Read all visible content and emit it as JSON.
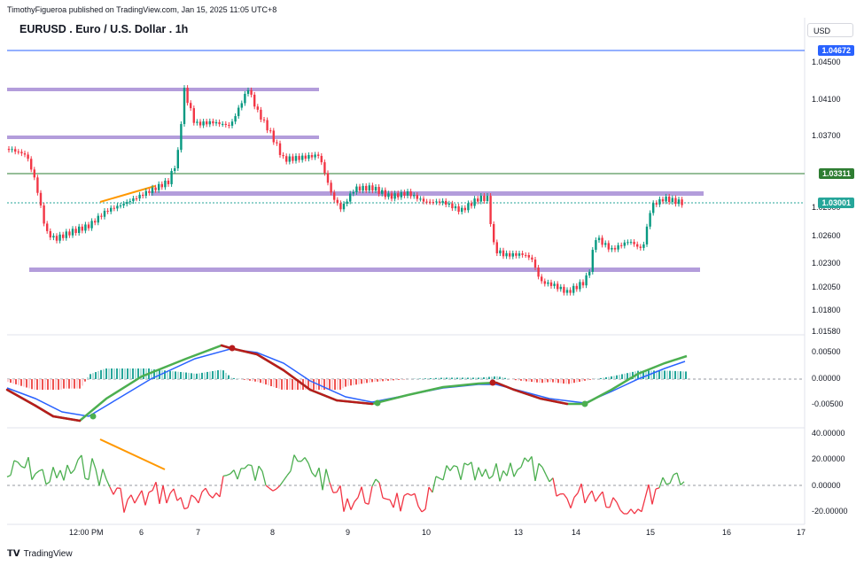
{
  "header": {
    "publisher_line": "TimothyFigueroa published on TradingView.com, Jan 15, 2025 11:05 UTC+8"
  },
  "chart": {
    "title": "EURUSD . Euro / U.S. Dollar . 1h",
    "currency": "USD",
    "price_ticks": [
      "1.04500",
      "1.04100",
      "1.03700",
      "1.02900",
      "1.02600",
      "1.02300",
      "1.02050",
      "1.01800",
      "1.01580"
    ],
    "price_tags": [
      {
        "value": "1.04672",
        "color": "#2962ff"
      },
      {
        "value": "1.03311",
        "color": "#2e7d32"
      },
      {
        "value": "1.03001",
        "color": "#26a69a"
      }
    ],
    "macd_ticks": [
      "0.00500",
      "0.00000",
      "-0.00500"
    ],
    "osc_ticks": [
      "40.00000",
      "20.00000",
      "0.00000",
      "-20.00000"
    ],
    "time_labels": [
      "12:00 PM",
      "6",
      "7",
      "8",
      "9",
      "10",
      "13",
      "14",
      "15",
      "16",
      "17"
    ]
  },
  "footer": {
    "brand": "TradingView",
    "brand_icon": "tradingview-logo-icon"
  }
}
